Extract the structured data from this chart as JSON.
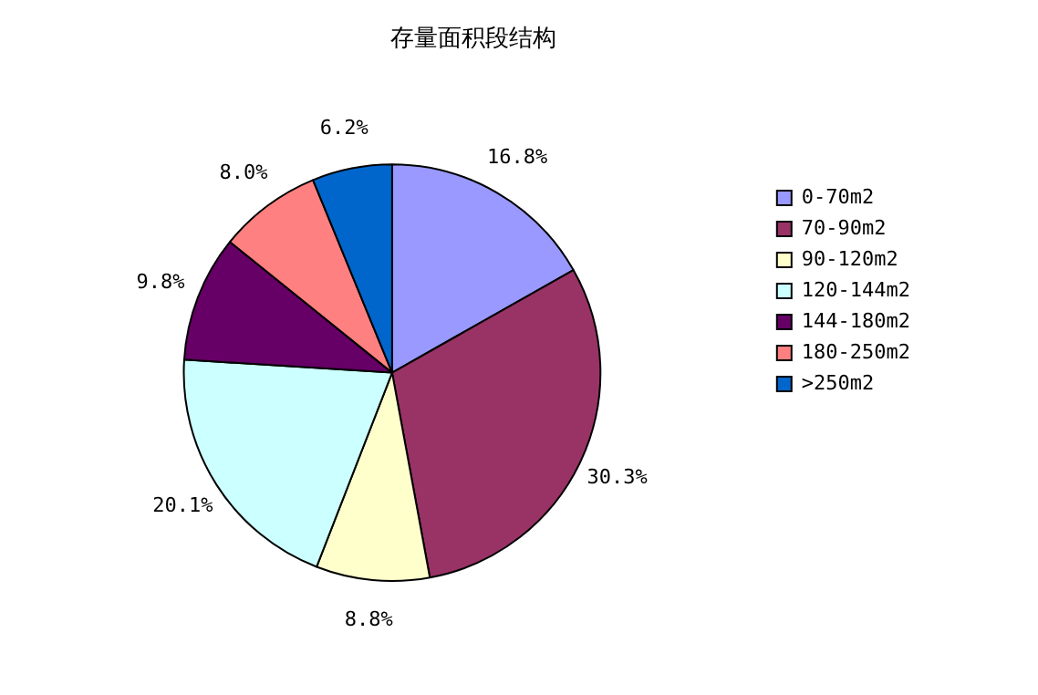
{
  "chart_data": {
    "type": "pie",
    "title": "存量面积段结构",
    "categories": [
      "0-70m2",
      "70-90m2",
      "90-120m2",
      "120-144m2",
      "144-180m2",
      "180-250m2",
      ">250m2"
    ],
    "values": [
      16.8,
      30.3,
      8.8,
      20.1,
      9.8,
      8.0,
      6.2
    ],
    "colors": [
      "#9999ff",
      "#993366",
      "#ffffcc",
      "#ccffff",
      "#660066",
      "#ff8080",
      "#0066cc"
    ],
    "value_labels": [
      "16.8%",
      "30.3%",
      "8.8%",
      "20.1%",
      "9.8%",
      "8.0%",
      "6.2%"
    ],
    "legend": "right"
  }
}
